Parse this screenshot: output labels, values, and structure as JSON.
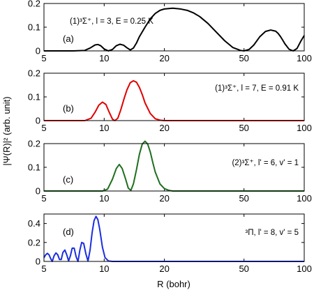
{
  "figure": {
    "ylabel": "|Ψ(R)|² (arb. unit)",
    "xlabel": "R (bohr)"
  },
  "chart_data": [
    {
      "id": "a",
      "type": "line",
      "panel_label": "(a)",
      "annotation": "(1)³Σ⁺, l = 3, E = 0.25 K",
      "x_scale": "log",
      "xlim": [
        5,
        100
      ],
      "ylim": [
        0,
        0.2
      ],
      "x_ticks": [
        5,
        10,
        20,
        50,
        100
      ],
      "y_ticks": [
        0,
        0.1,
        0.2
      ],
      "color": "#000000",
      "series": [
        {
          "x": [
            5,
            7,
            8,
            8.5,
            9,
            9.3,
            9.6,
            10,
            10.5,
            11,
            11.5,
            12,
            12.5,
            13,
            13.5,
            14,
            14.5,
            15,
            16,
            17,
            18,
            19,
            20,
            22,
            24,
            26,
            28,
            30,
            33,
            36,
            40,
            44,
            48,
            50,
            53,
            56,
            60,
            64,
            68,
            72,
            74,
            76,
            78,
            80,
            84,
            88,
            92,
            96,
            100
          ],
          "y": [
            0,
            0,
            0.002,
            0.012,
            0.025,
            0.027,
            0.022,
            0.008,
            0,
            0.006,
            0.022,
            0.028,
            0.024,
            0.013,
            0.004,
            0.012,
            0.033,
            0.06,
            0.1,
            0.135,
            0.158,
            0.171,
            0.177,
            0.18,
            0.177,
            0.171,
            0.16,
            0.145,
            0.116,
            0.083,
            0.043,
            0.014,
            0.002,
            0,
            0.006,
            0.025,
            0.06,
            0.082,
            0.088,
            0.083,
            0.074,
            0.061,
            0.046,
            0.03,
            0.007,
            0,
            0.01,
            0.04,
            0.065
          ]
        }
      ]
    },
    {
      "id": "b",
      "type": "line",
      "panel_label": "(b)",
      "annotation": "(1)³Σ⁺, l = 7, E = 0.91 K",
      "x_scale": "log",
      "xlim": [
        5,
        100
      ],
      "ylim": [
        0,
        0.2
      ],
      "x_ticks": [
        5,
        10,
        20,
        50,
        100
      ],
      "y_ticks": [
        0,
        0.1,
        0.2
      ],
      "color": "#e00000",
      "series": [
        {
          "x": [
            5,
            8,
            8.6,
            9,
            9.4,
            9.8,
            10.2,
            10.6,
            11,
            11.3,
            11.7,
            12.1,
            12.6,
            13,
            13.5,
            14,
            14.5,
            15,
            15.5,
            16,
            17,
            18,
            19,
            20,
            22,
            25,
            100
          ],
          "y": [
            0,
            0,
            0.01,
            0.035,
            0.065,
            0.078,
            0.068,
            0.035,
            0.006,
            0,
            0.01,
            0.045,
            0.095,
            0.13,
            0.16,
            0.168,
            0.162,
            0.14,
            0.11,
            0.075,
            0.03,
            0.008,
            0.002,
            0,
            0,
            0,
            0
          ]
        }
      ]
    },
    {
      "id": "c",
      "type": "line",
      "panel_label": "(c)",
      "annotation": "(2)³Σ⁺, l' = 6, v' = 1",
      "x_scale": "log",
      "xlim": [
        5,
        100
      ],
      "ylim": [
        0,
        0.2
      ],
      "x_ticks": [
        5,
        10,
        20,
        50,
        100
      ],
      "y_ticks": [
        0,
        0.1,
        0.2
      ],
      "color": "#1e6e1e",
      "series": [
        {
          "x": [
            5,
            9.8,
            10.4,
            11,
            11.5,
            11.9,
            12.3,
            12.8,
            13.2,
            13.6,
            14,
            14.5,
            15,
            15.5,
            16,
            16.5,
            17,
            17.5,
            18,
            19,
            20,
            21,
            22,
            24,
            100
          ],
          "y": [
            0,
            0,
            0.008,
            0.05,
            0.095,
            0.112,
            0.095,
            0.05,
            0.012,
            0.003,
            0.03,
            0.09,
            0.155,
            0.198,
            0.21,
            0.198,
            0.165,
            0.12,
            0.08,
            0.03,
            0.01,
            0.003,
            0,
            0,
            0
          ]
        }
      ]
    },
    {
      "id": "d",
      "type": "line",
      "panel_label": "(d)",
      "annotation": "³Π, l' = 8, v' = 5",
      "x_scale": "log",
      "xlim": [
        5,
        100
      ],
      "ylim": [
        0,
        0.5
      ],
      "x_ticks": [
        5,
        10,
        20,
        50,
        100
      ],
      "y_ticks": [
        0,
        0.2,
        0.4
      ],
      "color": "#1a2ee0",
      "series": [
        {
          "x": [
            5,
            5.1,
            5.2,
            5.3,
            5.4,
            5.5,
            5.62,
            5.74,
            5.86,
            5.98,
            6.1,
            6.22,
            6.36,
            6.5,
            6.64,
            6.78,
            6.92,
            7.08,
            7.24,
            7.4,
            7.56,
            7.72,
            7.9,
            8.1,
            8.3,
            8.5,
            8.7,
            8.9,
            9.1,
            9.3,
            9.5,
            9.8,
            10.1,
            10.5,
            11,
            12,
            100
          ],
          "y": [
            0.04,
            0.07,
            0.085,
            0.07,
            0.03,
            0,
            0.06,
            0.09,
            0.07,
            0.02,
            0.02,
            0.095,
            0.12,
            0.07,
            0.005,
            0.06,
            0.14,
            0.14,
            0.05,
            0,
            0.12,
            0.2,
            0.19,
            0.08,
            0.003,
            0.12,
            0.3,
            0.43,
            0.475,
            0.44,
            0.34,
            0.15,
            0.04,
            0.005,
            0,
            0,
            0
          ]
        }
      ]
    }
  ]
}
